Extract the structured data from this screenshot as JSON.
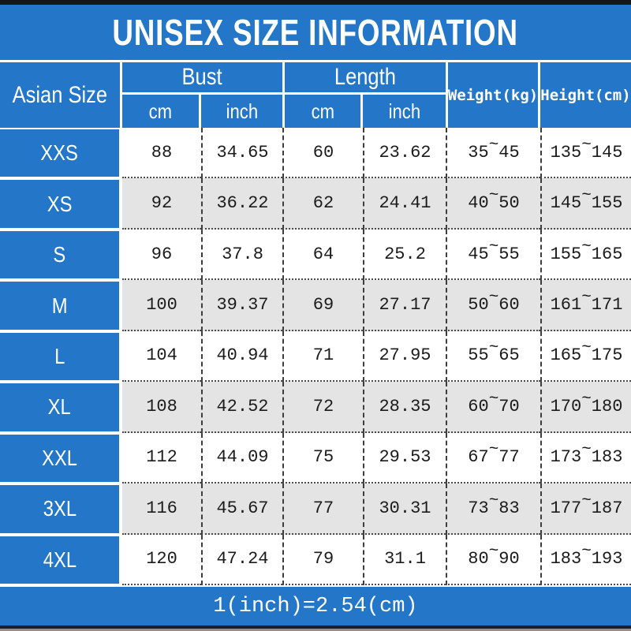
{
  "title": "UNISEX SIZE INFORMATION",
  "conversion_note": "1(inch)=2.54(cm)",
  "range_separator": "~",
  "colors": {
    "blue": "#2376c8",
    "row_alt": "#e4e4e4",
    "row": "#ffffff",
    "text": "#1b1b1b"
  },
  "header": {
    "size_column": "Asian Size",
    "bust_label": "Bust",
    "length_label": "Length",
    "cm_label": "cm",
    "inch_label": "inch",
    "weight_label": "Weight(kg)",
    "height_label": "Height(cm)"
  },
  "chart_data": {
    "type": "table",
    "title": "UNISEX SIZE INFORMATION",
    "columns": [
      "Asian Size",
      "Bust cm",
      "Bust inch",
      "Length cm",
      "Length inch",
      "Weight(kg)",
      "Height(cm)"
    ],
    "footnote": "1(inch)=2.54(cm)",
    "rows": [
      {
        "size": "XXS",
        "bust_cm": "88",
        "bust_inch": "34.65",
        "length_cm": "60",
        "length_inch": "23.62",
        "weight_min": "35",
        "weight_max": "45",
        "height_min": "135",
        "height_max": "145"
      },
      {
        "size": "XS",
        "bust_cm": "92",
        "bust_inch": "36.22",
        "length_cm": "62",
        "length_inch": "24.41",
        "weight_min": "40",
        "weight_max": "50",
        "height_min": "145",
        "height_max": "155"
      },
      {
        "size": "S",
        "bust_cm": "96",
        "bust_inch": "37.8",
        "length_cm": "64",
        "length_inch": "25.2",
        "weight_min": "45",
        "weight_max": "55",
        "height_min": "155",
        "height_max": "165"
      },
      {
        "size": "M",
        "bust_cm": "100",
        "bust_inch": "39.37",
        "length_cm": "69",
        "length_inch": "27.17",
        "weight_min": "50",
        "weight_max": "60",
        "height_min": "161",
        "height_max": "171"
      },
      {
        "size": "L",
        "bust_cm": "104",
        "bust_inch": "40.94",
        "length_cm": "71",
        "length_inch": "27.95",
        "weight_min": "55",
        "weight_max": "65",
        "height_min": "165",
        "height_max": "175"
      },
      {
        "size": "XL",
        "bust_cm": "108",
        "bust_inch": "42.52",
        "length_cm": "72",
        "length_inch": "28.35",
        "weight_min": "60",
        "weight_max": "70",
        "height_min": "170",
        "height_max": "180"
      },
      {
        "size": "XXL",
        "bust_cm": "112",
        "bust_inch": "44.09",
        "length_cm": "75",
        "length_inch": "29.53",
        "weight_min": "67",
        "weight_max": "77",
        "height_min": "173",
        "height_max": "183"
      },
      {
        "size": "3XL",
        "bust_cm": "116",
        "bust_inch": "45.67",
        "length_cm": "77",
        "length_inch": "30.31",
        "weight_min": "73",
        "weight_max": "83",
        "height_min": "177",
        "height_max": "187"
      },
      {
        "size": "4XL",
        "bust_cm": "120",
        "bust_inch": "47.24",
        "length_cm": "79",
        "length_inch": "31.1",
        "weight_min": "80",
        "weight_max": "90",
        "height_min": "183",
        "height_max": "193"
      }
    ]
  }
}
